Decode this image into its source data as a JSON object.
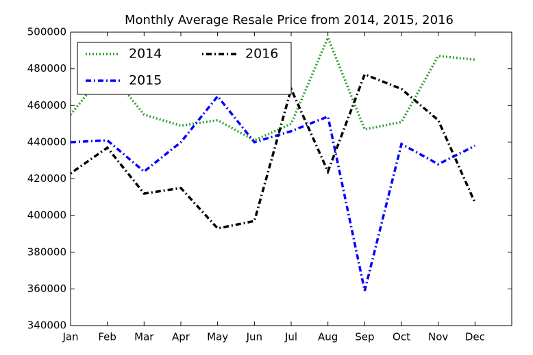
{
  "chart_data": {
    "type": "line",
    "title": "Monthly Average Resale Price from 2014, 2015, 2016",
    "categories": [
      "Jan",
      "Feb",
      "Mar",
      "Apr",
      "May",
      "Jun",
      "Jul",
      "Aug",
      "Sep",
      "Oct",
      "Nov",
      "Dec"
    ],
    "series": [
      {
        "name": "2014",
        "color": "#2ca02c",
        "values": [
          455000,
          480000,
          455000,
          449000,
          452000,
          441000,
          450000,
          497000,
          447000,
          451000,
          487000,
          485000
        ]
      },
      {
        "name": "2015",
        "color": "#0000ff",
        "values": [
          440000,
          441000,
          424000,
          440000,
          465000,
          440000,
          446000,
          454000,
          359000,
          439000,
          428000,
          438000
        ]
      },
      {
        "name": "2016",
        "color": "#000000",
        "values": [
          423000,
          437000,
          412000,
          415000,
          393000,
          397000,
          469000,
          424000,
          477000,
          469000,
          452000,
          407000
        ]
      }
    ],
    "ylim": [
      340000,
      500000
    ],
    "yticks": [
      340000,
      360000,
      380000,
      400000,
      420000,
      440000,
      460000,
      480000,
      500000
    ],
    "grid": false,
    "legend": "upper left"
  }
}
